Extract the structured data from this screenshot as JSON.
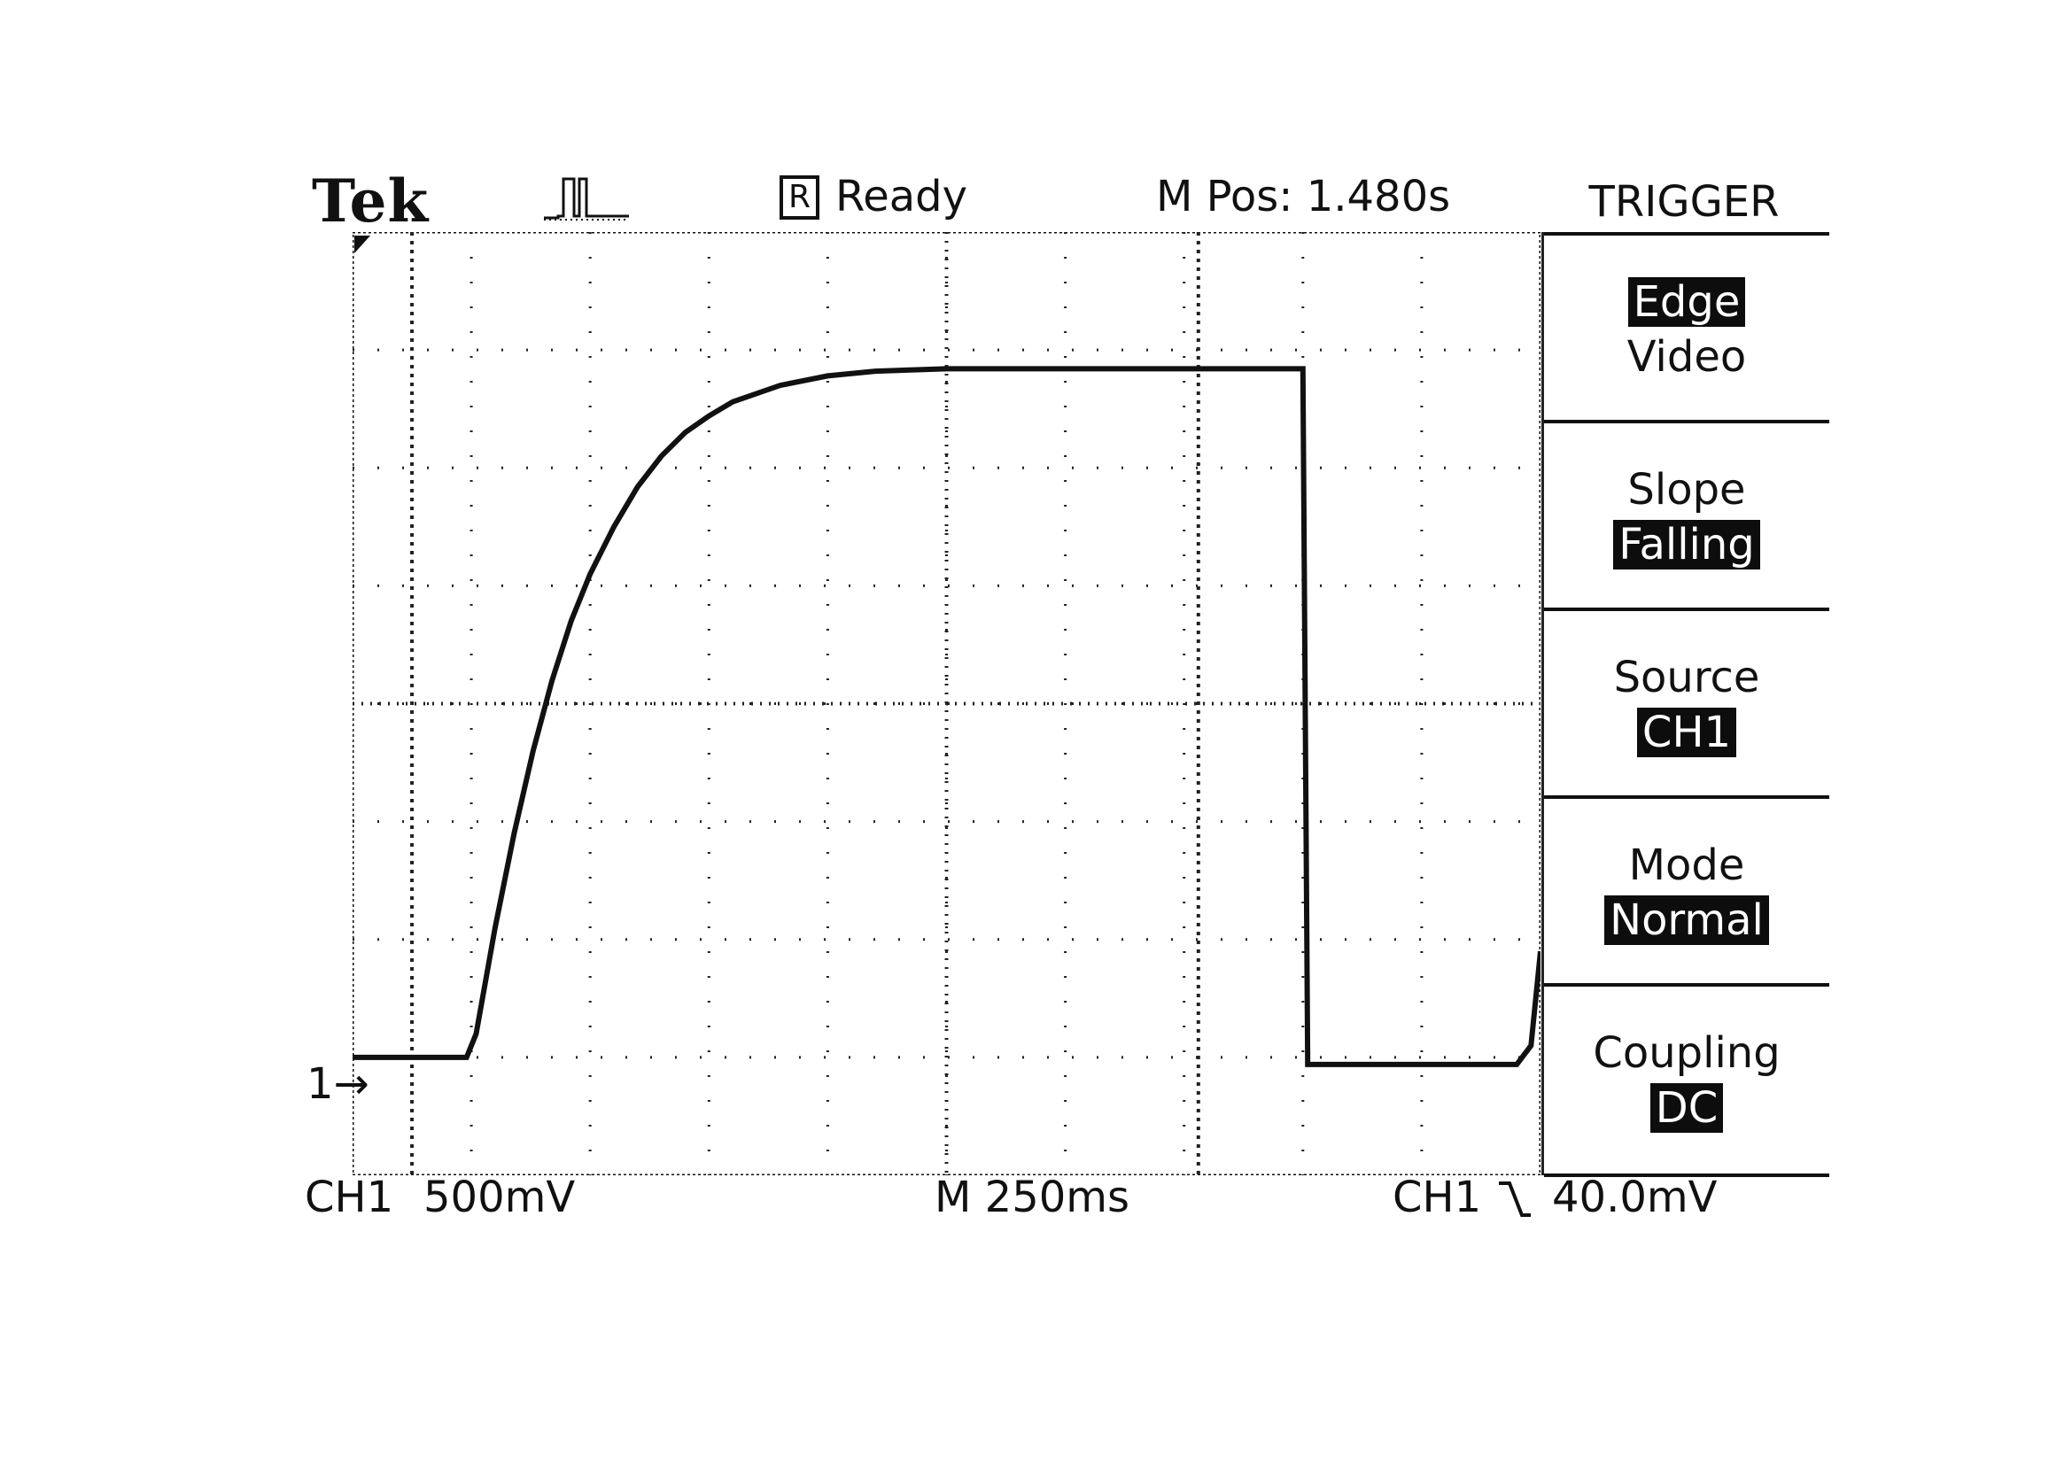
{
  "header": {
    "brand": "Tek",
    "run_state_icon": "acquisition-pulse-icon",
    "status_box": "R",
    "status_text": "Ready",
    "position": "M Pos: 1.480s"
  },
  "menu": {
    "title": "TRIGGER",
    "items": [
      {
        "label": "Edge",
        "value": "Video",
        "selected": "Edge"
      },
      {
        "label": "Slope",
        "value": "Falling"
      },
      {
        "label": "Source",
        "value": "CH1"
      },
      {
        "label": "Mode",
        "value": "Normal"
      },
      {
        "label": "Coupling",
        "value": "DC"
      }
    ]
  },
  "footer": {
    "channel": "CH1",
    "volts_per_div": "500mV",
    "time_per_div": "M 250ms",
    "trigger_channel": "CH1",
    "trigger_slope_icon": "falling-edge-icon",
    "trigger_level": "40.0mV"
  },
  "ground_marker": "1",
  "chart_data": {
    "type": "line",
    "title": "",
    "xlabel": "",
    "ylabel": "",
    "x_divisions": 10,
    "y_divisions": 8,
    "x_units": "s",
    "y_units": "V",
    "volts_per_div": 0.5,
    "seconds_per_div": 0.25,
    "grid": true,
    "cursor_x": [
      0.125,
      1.78
    ],
    "series": [
      {
        "points": [
          [
            0.0,
            0.0
          ],
          [
            0.24,
            0.0
          ],
          [
            0.26,
            0.1
          ],
          [
            0.3,
            0.55
          ],
          [
            0.34,
            0.95
          ],
          [
            0.38,
            1.3
          ],
          [
            0.42,
            1.6
          ],
          [
            0.46,
            1.85
          ],
          [
            0.5,
            2.05
          ],
          [
            0.55,
            2.25
          ],
          [
            0.6,
            2.42
          ],
          [
            0.65,
            2.55
          ],
          [
            0.7,
            2.65
          ],
          [
            0.75,
            2.72
          ],
          [
            0.8,
            2.78
          ],
          [
            0.9,
            2.85
          ],
          [
            1.0,
            2.89
          ],
          [
            1.1,
            2.91
          ],
          [
            1.25,
            2.92
          ],
          [
            1.5,
            2.92
          ],
          [
            1.75,
            2.92
          ],
          [
            2.0,
            2.92
          ],
          [
            2.01,
            -0.03
          ],
          [
            2.2,
            -0.03
          ],
          [
            2.45,
            -0.03
          ],
          [
            2.48,
            0.05
          ],
          [
            2.5,
            0.45
          ]
        ]
      }
    ]
  }
}
